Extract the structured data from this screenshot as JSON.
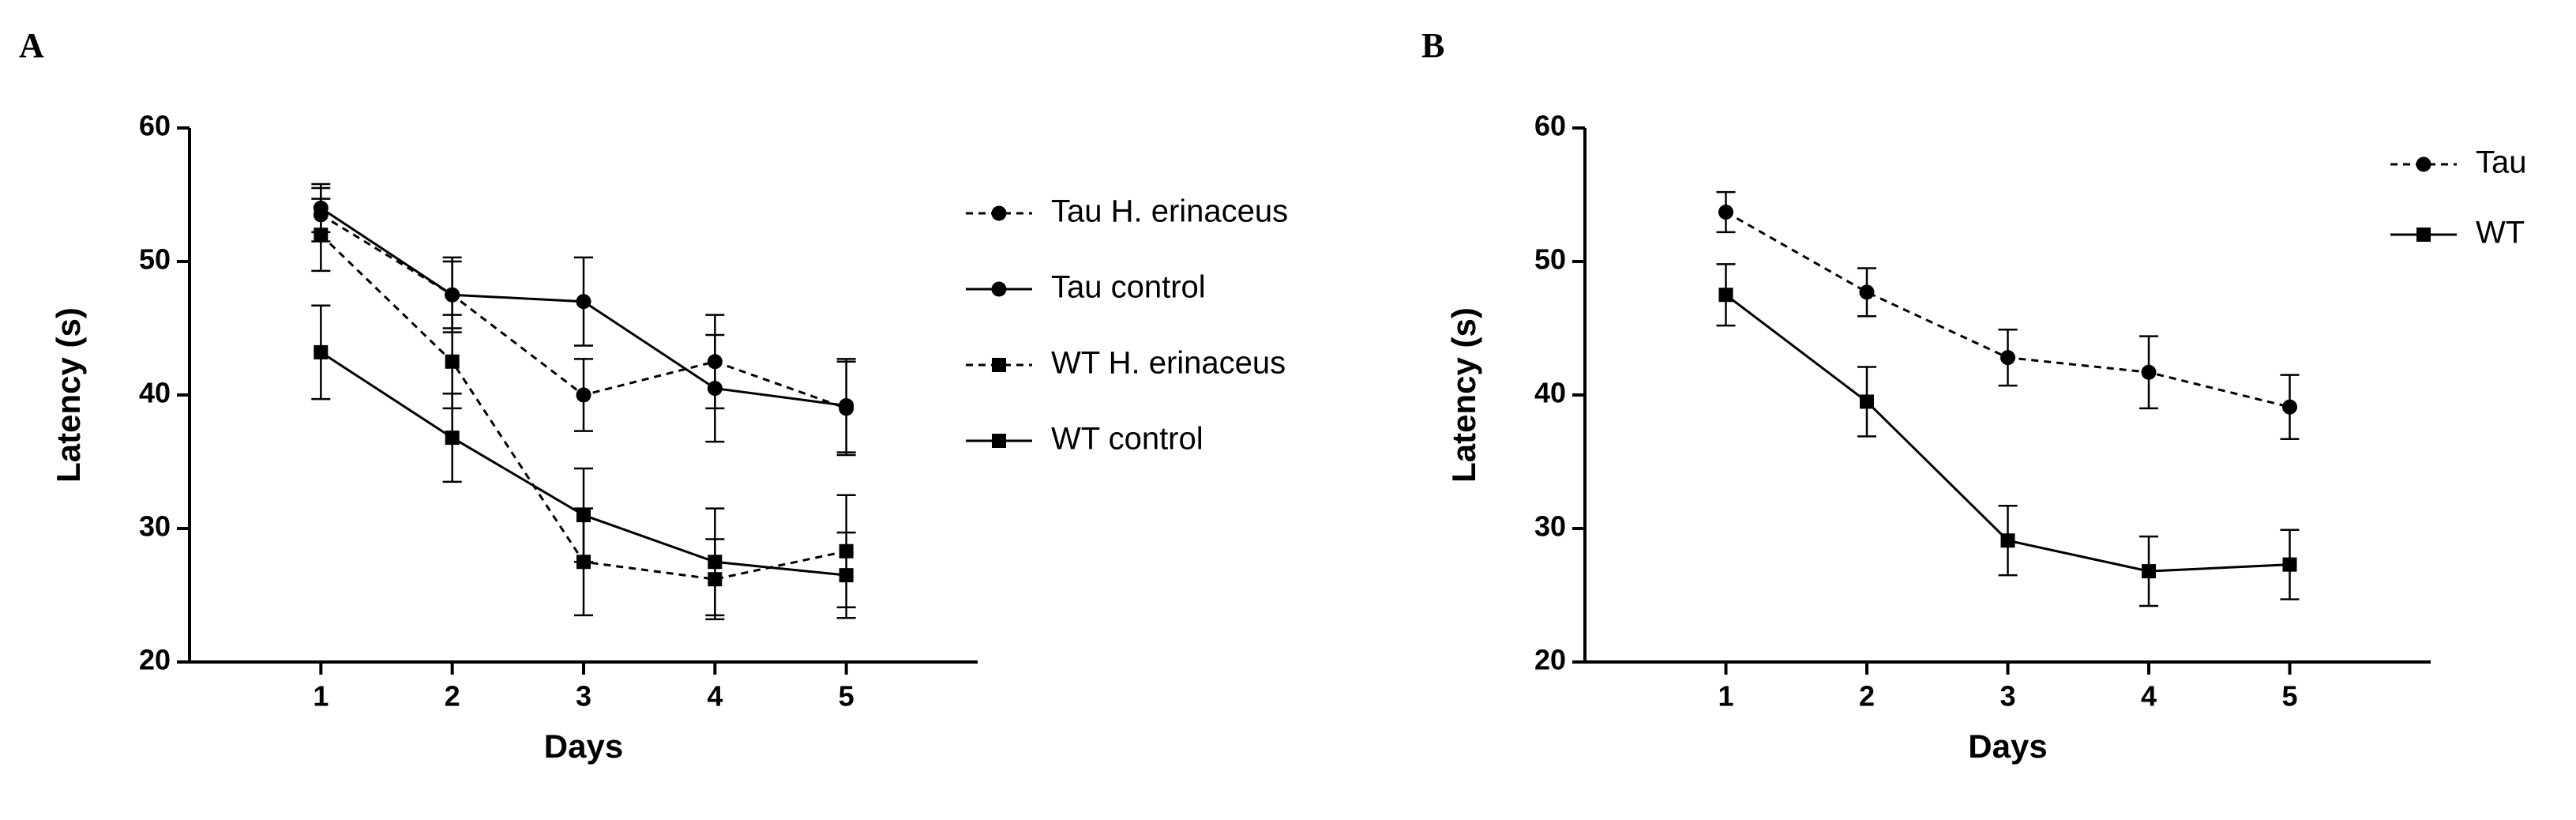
{
  "chart_data": [
    {
      "type": "line",
      "panel": "A",
      "x_label": "Days",
      "y_label": "Latency (s)",
      "xlim": [
        0,
        6
      ],
      "xticks": [
        1,
        2,
        3,
        4,
        5
      ],
      "ylim": [
        20,
        60
      ],
      "yticks": [
        20,
        30,
        40,
        50,
        60
      ],
      "legend": "right",
      "x": [
        1,
        2,
        3,
        4,
        5
      ],
      "series": [
        {
          "name": "Tau H. erinaceus",
          "color": "#000000",
          "dashed": true,
          "marker": "circle",
          "values": [
            53.5,
            47.5,
            40,
            42.5,
            39
          ],
          "errors": [
            2,
            2.5,
            2.7,
            3.5,
            3.5
          ]
        },
        {
          "name": "Tau control",
          "color": "#000000",
          "dashed": false,
          "marker": "circle",
          "values": [
            54,
            47.5,
            47,
            40.5,
            39.2
          ],
          "errors": [
            1.8,
            2.8,
            3.3,
            4,
            3.5
          ]
        },
        {
          "name": "WT H. erinaceus",
          "color": "#000000",
          "dashed": true,
          "marker": "square",
          "values": [
            52,
            42.5,
            27.5,
            26.2,
            28.3
          ],
          "errors": [
            2.7,
            3.5,
            4,
            3,
            4.2
          ]
        },
        {
          "name": "WT control",
          "color": "#000000",
          "dashed": false,
          "marker": "square",
          "values": [
            43.2,
            36.8,
            31,
            27.5,
            26.5
          ],
          "errors": [
            3.5,
            3.3,
            3.5,
            4,
            3.2
          ]
        }
      ]
    },
    {
      "type": "line",
      "panel": "B",
      "x_label": "Days",
      "y_label": "Latency (s)",
      "xlim": [
        0,
        6
      ],
      "xticks": [
        1,
        2,
        3,
        4,
        5
      ],
      "ylim": [
        20,
        60
      ],
      "yticks": [
        20,
        30,
        40,
        50,
        60
      ],
      "legend": "top-right",
      "x": [
        1,
        2,
        3,
        4,
        5
      ],
      "series": [
        {
          "name": "Tau",
          "color": "#000000",
          "dashed": true,
          "marker": "circle",
          "values": [
            53.7,
            47.7,
            42.8,
            41.7,
            39.1
          ],
          "errors": [
            1.5,
            1.8,
            2.1,
            2.7,
            2.4
          ]
        },
        {
          "name": "WT",
          "color": "#000000",
          "dashed": false,
          "marker": "square",
          "values": [
            47.5,
            39.5,
            29.1,
            26.8,
            27.3
          ],
          "errors": [
            2.3,
            2.6,
            2.6,
            2.6,
            2.6
          ]
        }
      ]
    }
  ]
}
